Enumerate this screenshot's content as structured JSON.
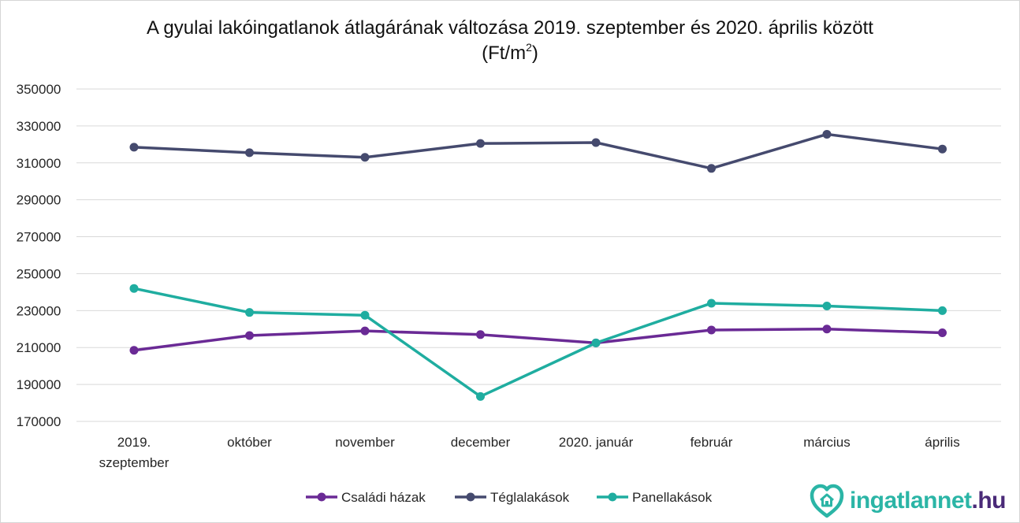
{
  "chart_data": {
    "type": "line",
    "title_line1": "A gyulai lakóingatlanok átlagárának változása 2019. szeptember és 2020. április között",
    "title_unit_base": "(Ft/m",
    "title_unit_sup": "2",
    "title_unit_close": ")",
    "ylim": [
      170000,
      350000
    ],
    "yticks": [
      "350000",
      "330000",
      "310000",
      "290000",
      "270000",
      "250000",
      "230000",
      "210000",
      "190000",
      "170000"
    ],
    "ytick_values": [
      350000,
      330000,
      310000,
      290000,
      270000,
      250000,
      230000,
      210000,
      190000,
      170000
    ],
    "categories": [
      [
        "2019.",
        "szeptember"
      ],
      [
        "október"
      ],
      [
        "november"
      ],
      [
        "december"
      ],
      [
        "2020. január"
      ],
      [
        "február"
      ],
      [
        "március"
      ],
      [
        "április"
      ]
    ],
    "grid": true,
    "legend_position": "bottom",
    "series": [
      {
        "name": "Családi házak",
        "color": "#6a2a95",
        "values": [
          208500,
          216500,
          219000,
          217000,
          212500,
          219500,
          220000,
          218000
        ]
      },
      {
        "name": "Téglalakások",
        "color": "#454a6e",
        "values": [
          318500,
          315500,
          313000,
          320500,
          321000,
          307000,
          325500,
          317500
        ]
      },
      {
        "name": "Panellakások",
        "color": "#1fada0",
        "values": [
          242000,
          229000,
          227500,
          183500,
          212500,
          234000,
          232500,
          230000
        ]
      }
    ]
  },
  "brand": {
    "name": "ingatlannet",
    "tld": ".hu"
  }
}
